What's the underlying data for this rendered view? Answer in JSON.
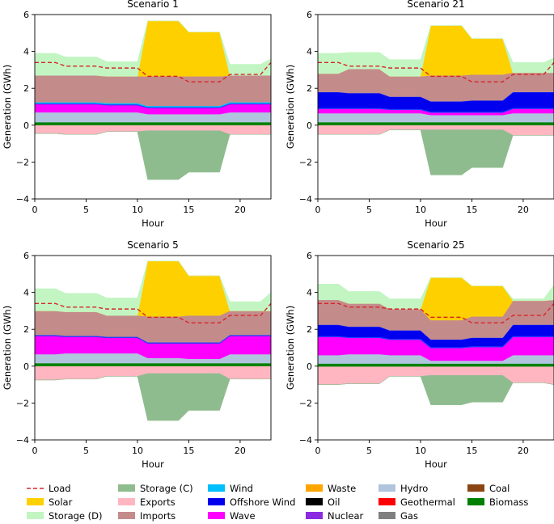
{
  "colors": {
    "Load": "#d62728",
    "Solar": "#ffd000",
    "Storage (D)": "#c2f5c2",
    "Storage (C)": "#8fbc8f",
    "Exports": "#ffb6c1",
    "Imports": "#c48b8b",
    "Wind": "#00bfff",
    "Offshore Wind": "#0000ee",
    "Wave": "#ff00ff",
    "Waste": "#ffa500",
    "Oil": "#000000",
    "Nuclear": "#8a2be2",
    "Hydro": "#b0c4de",
    "Geothermal": "#ff0000",
    "Gas": "#808080",
    "Coal": "#8b4513",
    "Biomass": "#008000"
  },
  "legend": {
    "columns": [
      [
        "Load",
        "Solar",
        "Storage (D)"
      ],
      [
        "Storage (C)",
        "Exports",
        "Imports"
      ],
      [
        "Wind",
        "Offshore Wind",
        "Wave"
      ],
      [
        "Waste",
        "Oil",
        "Nuclear"
      ],
      [
        "Hydro",
        "Geothermal",
        "Gas"
      ],
      [
        "Coal",
        "Biomass"
      ]
    ]
  },
  "chart_data": [
    {
      "type": "area",
      "title": "Scenario 1",
      "xlabel": "Hour",
      "ylabel": "Generation (GWh)",
      "xlim": [
        0,
        23
      ],
      "ylim": [
        -4,
        6
      ],
      "xticks": [
        0,
        5,
        10,
        15,
        20
      ],
      "yticks": [
        -4,
        -2,
        0,
        2,
        4,
        6
      ],
      "x": [
        0,
        2,
        3,
        6,
        7,
        10,
        11,
        14,
        15,
        18,
        19,
        22,
        23
      ],
      "series": [
        {
          "name": "Biomass",
          "values": [
            0.15,
            0.15,
            0.15,
            0.15,
            0.15,
            0.15,
            0.15,
            0.15,
            0.15,
            0.15,
            0.15,
            0.15,
            0.15
          ]
        },
        {
          "name": "Hydro",
          "values": [
            0.55,
            0.55,
            0.55,
            0.55,
            0.55,
            0.55,
            0.45,
            0.45,
            0.45,
            0.45,
            0.55,
            0.55,
            0.55
          ]
        },
        {
          "name": "Wave",
          "values": [
            0.45,
            0.45,
            0.45,
            0.45,
            0.4,
            0.4,
            0.35,
            0.35,
            0.35,
            0.35,
            0.45,
            0.45,
            0.45
          ]
        },
        {
          "name": "Offshore Wind",
          "values": [
            0.05,
            0.05,
            0.05,
            0.05,
            0.05,
            0.05,
            0.05,
            0.05,
            0.05,
            0.05,
            0.05,
            0.05,
            0.05
          ]
        },
        {
          "name": "Wind",
          "values": [
            0.05,
            0.05,
            0.05,
            0.05,
            0.05,
            0.05,
            0.05,
            0.05,
            0.05,
            0.05,
            0.05,
            0.05,
            0.05
          ]
        },
        {
          "name": "Imports",
          "values": [
            1.45,
            1.45,
            1.45,
            1.45,
            1.45,
            1.45,
            1.6,
            1.6,
            1.6,
            1.6,
            1.45,
            1.45,
            1.45
          ]
        },
        {
          "name": "Solar",
          "values": [
            0,
            0,
            0,
            0,
            0,
            0,
            3.0,
            3.0,
            2.4,
            2.4,
            0,
            0,
            0
          ]
        },
        {
          "name": "Storage (D)",
          "values": [
            1.2,
            1.2,
            1.0,
            1.0,
            0.8,
            0.8,
            0,
            0,
            0,
            0,
            0.6,
            0.6,
            0.9
          ]
        },
        {
          "name": "Exports",
          "values": [
            -0.45,
            -0.45,
            -0.5,
            -0.5,
            -0.35,
            -0.35,
            -0.3,
            -0.3,
            -0.3,
            -0.3,
            -0.5,
            -0.5,
            -0.5
          ]
        },
        {
          "name": "Storage (C)",
          "values": [
            0,
            0,
            0,
            0,
            0,
            0,
            -2.65,
            -2.65,
            -2.25,
            -2.25,
            0,
            0,
            0
          ]
        }
      ],
      "load": [
        3.4,
        3.4,
        3.2,
        3.2,
        3.1,
        3.1,
        2.65,
        2.65,
        2.35,
        2.35,
        2.75,
        2.75,
        3.4
      ]
    },
    {
      "type": "area",
      "title": "Scenario 21",
      "xlabel": "Hour",
      "ylabel": "Generation (GWh)",
      "xlim": [
        0,
        23
      ],
      "ylim": [
        -4,
        6
      ],
      "xticks": [
        0,
        5,
        10,
        15,
        20
      ],
      "yticks": [
        -4,
        -2,
        0,
        2,
        4,
        6
      ],
      "x": [
        0,
        2,
        3,
        6,
        7,
        10,
        11,
        14,
        15,
        18,
        19,
        22,
        23
      ],
      "series": [
        {
          "name": "Biomass",
          "values": [
            0.15,
            0.15,
            0.15,
            0.15,
            0.15,
            0.15,
            0.15,
            0.15,
            0.15,
            0.15,
            0.15,
            0.15,
            0.15
          ]
        },
        {
          "name": "Hydro",
          "values": [
            0.5,
            0.5,
            0.5,
            0.5,
            0.5,
            0.5,
            0.4,
            0.4,
            0.4,
            0.4,
            0.5,
            0.5,
            0.5
          ]
        },
        {
          "name": "Wave",
          "values": [
            0.25,
            0.25,
            0.25,
            0.25,
            0.2,
            0.2,
            0.15,
            0.15,
            0.15,
            0.15,
            0.25,
            0.25,
            0.25
          ]
        },
        {
          "name": "Offshore Wind",
          "values": [
            0.9,
            0.9,
            0.85,
            0.85,
            0.7,
            0.7,
            0.6,
            0.6,
            0.65,
            0.65,
            0.9,
            0.9,
            0.9
          ]
        },
        {
          "name": "Wind",
          "values": [
            0,
            0,
            0,
            0,
            0,
            0,
            0,
            0,
            0,
            0,
            0,
            0,
            0
          ]
        },
        {
          "name": "Imports",
          "values": [
            1.0,
            1.0,
            1.3,
            1.3,
            1.1,
            1.1,
            1.4,
            1.4,
            1.4,
            1.4,
            1.05,
            1.05,
            1.05
          ]
        },
        {
          "name": "Solar",
          "values": [
            0,
            0,
            0,
            0,
            0,
            0,
            2.7,
            2.7,
            1.95,
            1.95,
            0,
            0,
            0
          ]
        },
        {
          "name": "Storage (D)",
          "values": [
            1.1,
            1.1,
            0.9,
            0.9,
            0.9,
            0.9,
            0,
            0,
            0,
            0,
            0.55,
            0.55,
            0.8
          ]
        },
        {
          "name": "Exports",
          "values": [
            -0.5,
            -0.5,
            -0.5,
            -0.5,
            -0.25,
            -0.25,
            -0.25,
            -0.25,
            -0.25,
            -0.25,
            -0.55,
            -0.55,
            -0.55
          ]
        },
        {
          "name": "Storage (C)",
          "values": [
            0,
            0,
            0,
            0,
            0,
            0,
            -2.45,
            -2.45,
            -2.05,
            -2.05,
            0,
            0,
            0
          ]
        }
      ],
      "load": [
        3.4,
        3.4,
        3.2,
        3.2,
        3.1,
        3.1,
        2.65,
        2.65,
        2.35,
        2.35,
        2.75,
        2.75,
        3.4
      ]
    },
    {
      "type": "area",
      "title": "Scenario 5",
      "xlabel": "Hour",
      "ylabel": "Generation (GWh)",
      "xlim": [
        0,
        23
      ],
      "ylim": [
        -4,
        6
      ],
      "xticks": [
        0,
        5,
        10,
        15,
        20
      ],
      "yticks": [
        -4,
        -2,
        0,
        2,
        4,
        6
      ],
      "x": [
        0,
        2,
        3,
        6,
        7,
        10,
        11,
        14,
        15,
        18,
        19,
        22,
        23
      ],
      "series": [
        {
          "name": "Biomass",
          "values": [
            0.15,
            0.15,
            0.15,
            0.15,
            0.15,
            0.15,
            0.15,
            0.15,
            0.15,
            0.15,
            0.15,
            0.15,
            0.15
          ]
        },
        {
          "name": "Hydro",
          "values": [
            0.5,
            0.5,
            0.55,
            0.55,
            0.55,
            0.55,
            0.3,
            0.3,
            0.25,
            0.25,
            0.5,
            0.5,
            0.5
          ]
        },
        {
          "name": "Wave",
          "values": [
            1.0,
            1.0,
            0.9,
            0.9,
            0.85,
            0.85,
            0.8,
            0.8,
            0.85,
            0.85,
            1.0,
            1.0,
            1.0
          ]
        },
        {
          "name": "Offshore Wind",
          "values": [
            0.05,
            0.05,
            0.05,
            0.05,
            0.05,
            0.05,
            0.05,
            0.05,
            0.05,
            0.05,
            0.05,
            0.05,
            0.05
          ]
        },
        {
          "name": "Wind",
          "values": [
            0,
            0,
            0,
            0,
            0,
            0,
            0,
            0,
            0,
            0,
            0,
            0,
            0
          ]
        },
        {
          "name": "Imports",
          "values": [
            1.3,
            1.3,
            1.3,
            1.3,
            1.15,
            1.15,
            1.4,
            1.4,
            1.45,
            1.45,
            1.3,
            1.3,
            1.3
          ]
        },
        {
          "name": "Solar",
          "values": [
            0,
            0,
            0,
            0,
            0,
            0,
            3.0,
            3.0,
            2.15,
            2.15,
            0,
            0,
            0
          ]
        },
        {
          "name": "Storage (D)",
          "values": [
            1.2,
            1.2,
            1.0,
            1.0,
            0.95,
            0.95,
            0,
            0,
            0,
            0,
            0.5,
            0.5,
            1.0
          ]
        },
        {
          "name": "Exports",
          "values": [
            -0.75,
            -0.75,
            -0.7,
            -0.7,
            -0.55,
            -0.55,
            -0.4,
            -0.4,
            -0.4,
            -0.4,
            -0.7,
            -0.7,
            -0.7
          ]
        },
        {
          "name": "Storage (C)",
          "values": [
            0,
            0,
            0,
            0,
            0,
            0,
            -2.55,
            -2.55,
            -2.0,
            -2.0,
            0,
            0,
            0
          ]
        }
      ],
      "load": [
        3.4,
        3.4,
        3.2,
        3.2,
        3.1,
        3.1,
        2.65,
        2.65,
        2.35,
        2.35,
        2.75,
        2.75,
        3.4
      ]
    },
    {
      "type": "area",
      "title": "Scenario 25",
      "xlabel": "Hour",
      "ylabel": "Generation (GWh)",
      "xlim": [
        0,
        23
      ],
      "ylim": [
        -4,
        6
      ],
      "xticks": [
        0,
        5,
        10,
        15,
        20
      ],
      "yticks": [
        -4,
        -2,
        0,
        2,
        4,
        6
      ],
      "x": [
        0,
        2,
        3,
        6,
        7,
        10,
        11,
        14,
        15,
        18,
        19,
        22,
        23
      ],
      "series": [
        {
          "name": "Biomass",
          "values": [
            0.1,
            0.1,
            0.1,
            0.1,
            0.1,
            0.1,
            0.1,
            0.1,
            0.1,
            0.1,
            0.1,
            0.1,
            0.1
          ]
        },
        {
          "name": "Hydro",
          "values": [
            0.5,
            0.5,
            0.55,
            0.55,
            0.5,
            0.5,
            0.2,
            0.2,
            0.2,
            0.2,
            0.5,
            0.5,
            0.5
          ]
        },
        {
          "name": "Wave",
          "values": [
            1.0,
            1.0,
            0.9,
            0.9,
            0.85,
            0.85,
            0.7,
            0.7,
            0.75,
            0.75,
            1.0,
            1.0,
            1.0
          ]
        },
        {
          "name": "Offshore Wind",
          "values": [
            0.65,
            0.65,
            0.6,
            0.6,
            0.5,
            0.5,
            0.45,
            0.45,
            0.5,
            0.5,
            0.65,
            0.65,
            0.65
          ]
        },
        {
          "name": "Wind",
          "values": [
            0,
            0,
            0,
            0,
            0,
            0,
            0,
            0,
            0,
            0,
            0,
            0,
            0
          ]
        },
        {
          "name": "Imports",
          "values": [
            1.35,
            1.35,
            1.25,
            1.25,
            1.15,
            1.15,
            1.05,
            1.05,
            1.15,
            1.15,
            1.3,
            1.3,
            1.35
          ]
        },
        {
          "name": "Solar",
          "values": [
            0,
            0,
            0,
            0,
            0,
            0,
            2.3,
            2.3,
            1.65,
            1.65,
            0,
            0,
            0
          ]
        },
        {
          "name": "Storage (D)",
          "values": [
            0.85,
            0.85,
            0.65,
            0.65,
            0.55,
            0.55,
            0,
            0,
            0,
            0,
            0.1,
            0.1,
            0.8
          ]
        },
        {
          "name": "Exports",
          "values": [
            -1.0,
            -1.0,
            -0.95,
            -0.95,
            -0.55,
            -0.55,
            -0.5,
            -0.5,
            -0.5,
            -0.5,
            -0.9,
            -0.9,
            -1.0
          ]
        },
        {
          "name": "Storage (C)",
          "values": [
            0,
            0,
            0,
            0,
            0,
            0,
            -1.6,
            -1.6,
            -1.45,
            -1.45,
            0,
            0,
            0
          ]
        }
      ],
      "load": [
        3.4,
        3.4,
        3.2,
        3.2,
        3.1,
        3.1,
        2.65,
        2.65,
        2.35,
        2.35,
        2.75,
        2.75,
        3.4
      ]
    }
  ]
}
